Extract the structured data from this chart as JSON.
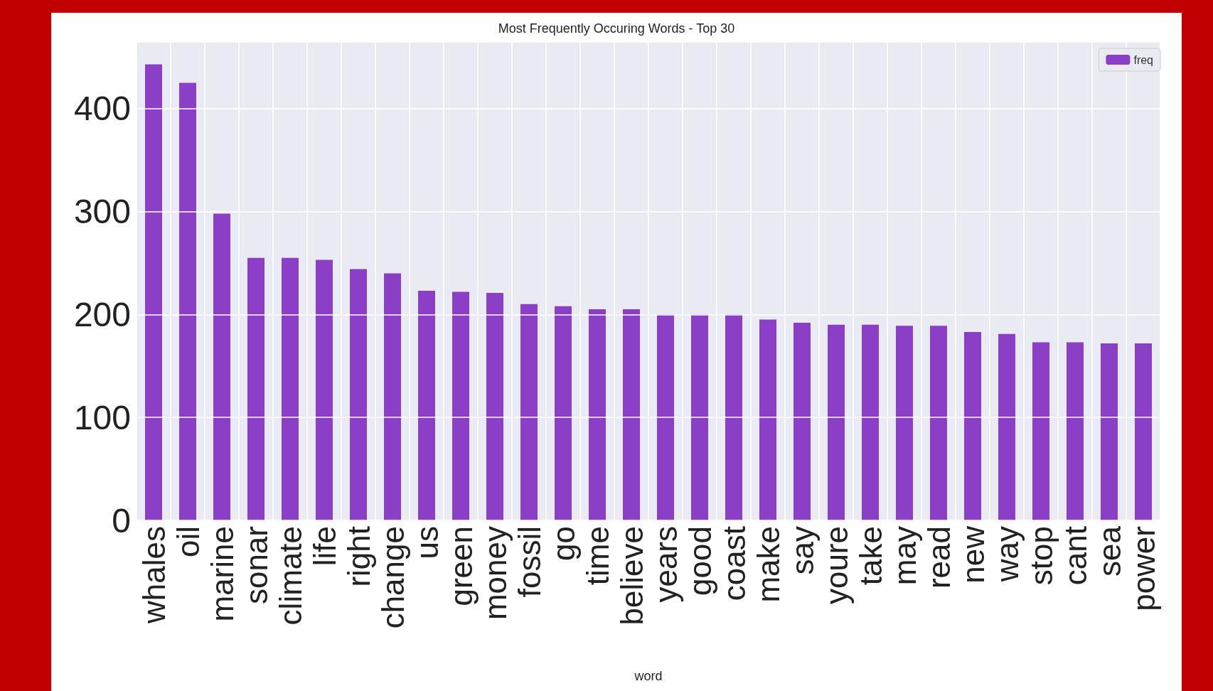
{
  "chart_data": {
    "type": "bar",
    "title": "Most Frequently Occuring Words - Top 30",
    "xlabel": "word",
    "categories": [
      "whales",
      "oil",
      "marine",
      "sonar",
      "climate",
      "life",
      "right",
      "change",
      "us",
      "green",
      "money",
      "fossil",
      "go",
      "time",
      "believe",
      "years",
      "good",
      "coast",
      "make",
      "say",
      "youre",
      "take",
      "may",
      "read",
      "new",
      "way",
      "stop",
      "cant",
      "sea",
      "power"
    ],
    "series": [
      {
        "name": "freq",
        "color": "#8b3fc6",
        "values": [
          443,
          425,
          298,
          255,
          255,
          253,
          244,
          240,
          223,
          222,
          221,
          210,
          208,
          205,
          205,
          200,
          200,
          200,
          195,
          192,
          190,
          190,
          189,
          189,
          183,
          181,
          173,
          173,
          172,
          172
        ]
      }
    ],
    "ylim": [
      0,
      464
    ],
    "yticks": [
      0,
      100,
      200,
      300,
      400
    ],
    "grid": true,
    "legend": "top right"
  }
}
